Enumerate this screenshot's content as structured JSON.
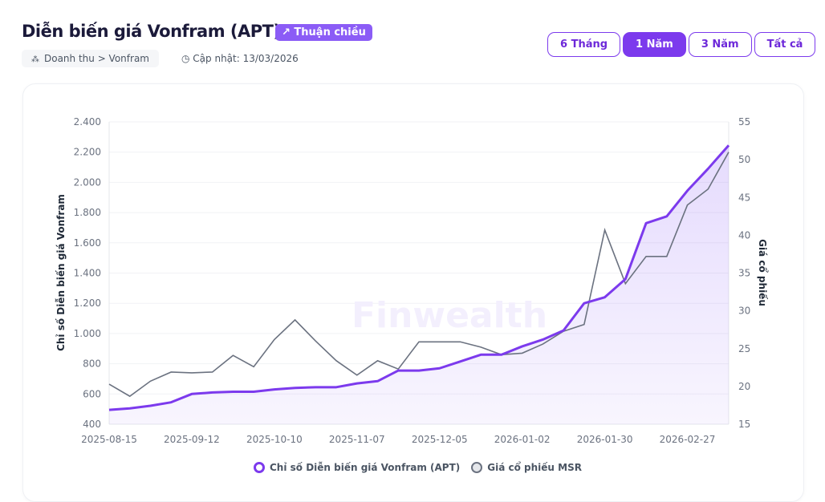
{
  "header": {
    "title": "Diễn biến giá Vonfram (APT)",
    "badge": "↗ Thuận chiều",
    "breadcrumb": "Doanh thu > Vonfram",
    "updated": "Cập nhật: 13/03/2026"
  },
  "tabs": [
    {
      "label": "6 Tháng",
      "active": false
    },
    {
      "label": "1 Năm",
      "active": true
    },
    {
      "label": "3 Năm",
      "active": false
    },
    {
      "label": "Tất cả",
      "active": false
    }
  ],
  "colors": {
    "accent": "#7c3aed",
    "gray": "#6b7280"
  },
  "chart_data": {
    "type": "line",
    "watermark": "Finwealth",
    "ylabel": "Chỉ số Diễn biến giá Vonfram",
    "y2label": "Giá cổ phiếu",
    "ylim": [
      400,
      2400
    ],
    "y2lim": [
      15,
      55
    ],
    "yticks": [
      "400",
      "600",
      "800",
      "1.000",
      "1.200",
      "1.400",
      "1.600",
      "1.800",
      "2.000",
      "2.200",
      "2.400"
    ],
    "y2ticks": [
      "15",
      "20",
      "25",
      "30",
      "35",
      "40",
      "45",
      "50",
      "55"
    ],
    "xticks": [
      "2025-08-15",
      "2025-09-12",
      "2025-10-10",
      "2025-11-07",
      "2025-12-05",
      "2026-01-02",
      "2026-01-30",
      "2026-02-27"
    ],
    "legend_position": "bottom",
    "series": [
      {
        "name": "Chỉ số Diễn biến giá Vonfram (APT)",
        "axis": "left",
        "values": [
          495,
          505,
          522,
          545,
          600,
          610,
          615,
          615,
          630,
          640,
          645,
          645,
          670,
          685,
          755,
          755,
          770,
          815,
          860,
          860,
          915,
          960,
          1020,
          1200,
          1240,
          1360,
          1730,
          1775,
          1945,
          2090,
          2245
        ]
      },
      {
        "name": "Giá cổ phiếu MSR",
        "axis": "right",
        "values": [
          20.3,
          18.7,
          20.7,
          21.9,
          21.8,
          21.9,
          24.1,
          22.6,
          26.2,
          28.8,
          26.0,
          23.4,
          21.5,
          23.4,
          22.3,
          25.9,
          25.9,
          25.9,
          25.2,
          24.2,
          24.4,
          25.6,
          27.3,
          28.2,
          40.7,
          33.6,
          37.2,
          37.2,
          44.0,
          46.1,
          51.0
        ]
      }
    ]
  }
}
